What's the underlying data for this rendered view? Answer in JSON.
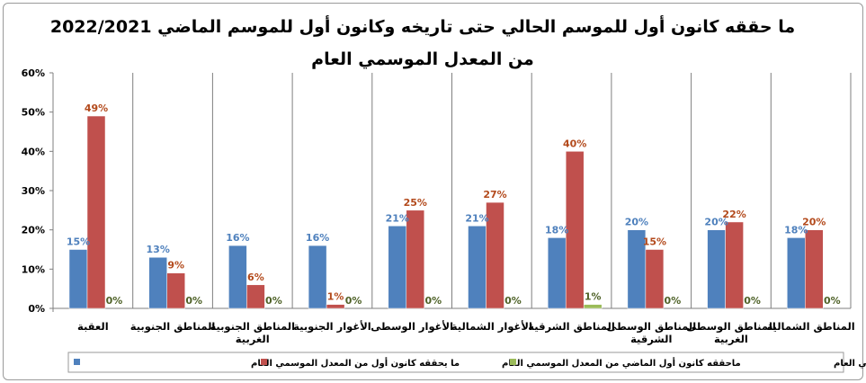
{
  "chart_data": {
    "type": "bar",
    "title_lines": [
      "ما حققه كانون أول للموسم الحالي حتى تاريخه وكانون أول للموسم الماضي 2022/2021",
      "من المعدل الموسمي العام"
    ],
    "categories": [
      [
        "المناطق الشمالية"
      ],
      [
        "المناطق الوسطى",
        "الغربية"
      ],
      [
        "المناطق الوسطى",
        "الشرقية"
      ],
      [
        "المناطق الشرقية"
      ],
      [
        "الأغوار الشمالية"
      ],
      [
        "الأغوار الوسطى"
      ],
      [
        "الأغوار الجنوبية"
      ],
      [
        "المناطق الجنوبية",
        "الغربية"
      ],
      [
        "المناطق الجنوبية"
      ],
      [
        "العقبة"
      ]
    ],
    "series": [
      {
        "name": "ما يحققه كانون أول من المعدل الموسمي العام",
        "color": "#4f81bd",
        "label_color": "#4f81bd",
        "values": [
          18,
          20,
          20,
          18,
          21,
          21,
          16,
          16,
          13,
          15
        ],
        "labels": [
          "18%",
          "20%",
          "20%",
          "18%",
          "21%",
          "21%",
          "16%",
          "16%",
          "13%",
          "15%"
        ]
      },
      {
        "name": "ماحققه كانون أول الماضي من المعدل الموسمي العام",
        "color": "#c0504d",
        "label_color": "#b34a1c",
        "values": [
          20,
          22,
          15,
          40,
          27,
          25,
          1,
          6,
          9,
          49
        ],
        "labels": [
          "20%",
          "22%",
          "15%",
          "40%",
          "27%",
          "25%",
          "1%",
          "6%",
          "9%",
          "49%"
        ]
      },
      {
        "name": "ماحققه كانون أول للموسم الحالي حتى تاريخه من المعدل الموسمي العام",
        "color": "#9bbb59",
        "label_color": "#4f6228",
        "values": [
          0,
          0,
          0,
          1,
          0,
          0,
          0,
          0,
          0,
          0
        ],
        "labels": [
          "0%",
          "0%",
          "0%",
          "1%",
          "0%",
          "0%",
          "0%",
          "0%",
          "0%",
          "0%"
        ]
      }
    ],
    "ylim": [
      0,
      60
    ],
    "yticks": [
      "0%",
      "10%",
      "20%",
      "30%",
      "40%",
      "50%",
      "60%"
    ],
    "grid": "vertical-category-separators",
    "legend_position": "bottom"
  }
}
